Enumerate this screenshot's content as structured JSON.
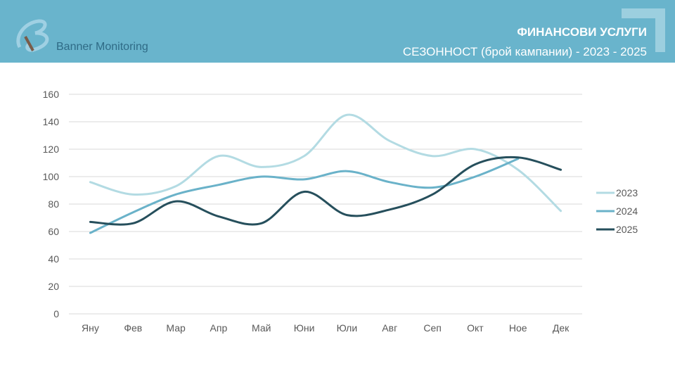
{
  "header": {
    "brand": "Banner Monitoring",
    "title": "ФИНАНСОВИ УСЛУГИ",
    "subtitle": "СЕЗОННОСТ (брой кампании) - 2023 - 2025"
  },
  "colors": {
    "header": "#69b4cc",
    "s2023": "#b3dbe3",
    "s2024": "#6ab2c9",
    "s2025": "#264f5c"
  },
  "chart_data": {
    "type": "line",
    "title": "СЕЗОННОСТ (брой кампании) - 2023 - 2025",
    "categories": [
      "Яну",
      "Фев",
      "Мар",
      "Апр",
      "Май",
      "Юни",
      "Юли",
      "Авг",
      "Сеп",
      "Окт",
      "Ное",
      "Дек"
    ],
    "ylim": [
      0,
      160
    ],
    "yticks": [
      "0",
      "20",
      "40",
      "60",
      "80",
      "100",
      "120",
      "140",
      "160"
    ],
    "grid": true,
    "legend_position": "right",
    "series": [
      {
        "name": "2023",
        "values": [
          96,
          87,
          93,
          115,
          107,
          115,
          145,
          126,
          115,
          120,
          105,
          75
        ]
      },
      {
        "name": "2024",
        "values": [
          59,
          74,
          87,
          94,
          100,
          98,
          104,
          96,
          92,
          100,
          113,
          null
        ]
      },
      {
        "name": "2025",
        "values": [
          67,
          66,
          82,
          71,
          66,
          89,
          72,
          76,
          87,
          109,
          114,
          105
        ]
      }
    ]
  }
}
